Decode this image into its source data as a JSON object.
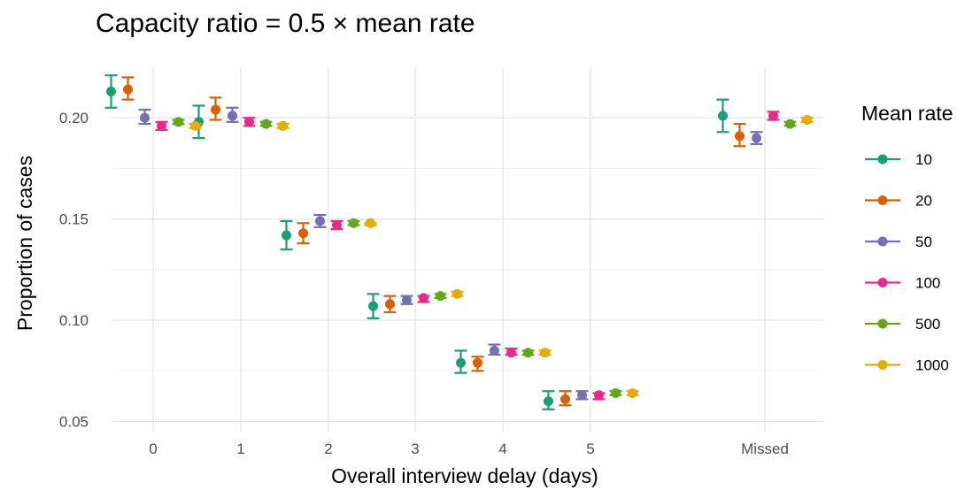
{
  "chart_data": {
    "type": "scatter",
    "title": "Capacity ratio = 0.5 × mean rate",
    "xlabel": "Overall interview delay (days)",
    "ylabel": "Proportion of cases",
    "categories": [
      "0",
      "1",
      "2",
      "3",
      "4",
      "5",
      "Missed"
    ],
    "ylim": [
      0.045,
      0.225
    ],
    "yticks": [
      0.05,
      0.1,
      0.15,
      0.2
    ],
    "ytick_labels": [
      "0.05",
      "0.10",
      "0.15",
      "0.20"
    ],
    "grid": true,
    "legend": {
      "title": "Mean rate",
      "position": "right"
    },
    "series": [
      {
        "name": "10",
        "color": "#1b9e77",
        "values": [
          0.213,
          0.198,
          0.142,
          0.107,
          0.079,
          0.06,
          0.201
        ],
        "lower": [
          0.205,
          0.19,
          0.135,
          0.101,
          0.074,
          0.056,
          0.193
        ],
        "upper": [
          0.221,
          0.206,
          0.149,
          0.113,
          0.085,
          0.065,
          0.209
        ]
      },
      {
        "name": "20",
        "color": "#d95f02",
        "values": [
          0.214,
          0.204,
          0.143,
          0.108,
          0.079,
          0.061,
          0.191
        ],
        "lower": [
          0.209,
          0.199,
          0.138,
          0.104,
          0.075,
          0.058,
          0.186
        ],
        "upper": [
          0.22,
          0.21,
          0.148,
          0.112,
          0.082,
          0.065,
          0.197
        ]
      },
      {
        "name": "50",
        "color": "#7570b3",
        "values": [
          0.2,
          0.201,
          0.149,
          0.11,
          0.085,
          0.063,
          0.19
        ],
        "lower": [
          0.197,
          0.198,
          0.146,
          0.108,
          0.083,
          0.061,
          0.187
        ],
        "upper": [
          0.204,
          0.205,
          0.152,
          0.112,
          0.088,
          0.065,
          0.193
        ]
      },
      {
        "name": "100",
        "color": "#e7298a",
        "values": [
          0.196,
          0.198,
          0.147,
          0.111,
          0.084,
          0.063,
          0.201
        ],
        "lower": [
          0.194,
          0.196,
          0.145,
          0.109,
          0.083,
          0.061,
          0.199
        ],
        "upper": [
          0.198,
          0.2,
          0.149,
          0.112,
          0.086,
          0.064,
          0.203
        ]
      },
      {
        "name": "500",
        "color": "#66a61e",
        "values": [
          0.198,
          0.197,
          0.148,
          0.112,
          0.084,
          0.064,
          0.197
        ],
        "lower": [
          0.197,
          0.196,
          0.147,
          0.111,
          0.083,
          0.063,
          0.196
        ],
        "upper": [
          0.199,
          0.198,
          0.149,
          0.113,
          0.085,
          0.065,
          0.198
        ]
      },
      {
        "name": "1000",
        "color": "#e6ab02",
        "values": [
          0.196,
          0.196,
          0.148,
          0.113,
          0.084,
          0.064,
          0.199
        ],
        "lower": [
          0.195,
          0.195,
          0.147,
          0.112,
          0.083,
          0.063,
          0.198
        ],
        "upper": [
          0.197,
          0.197,
          0.148,
          0.114,
          0.085,
          0.065,
          0.2
        ]
      }
    ]
  }
}
